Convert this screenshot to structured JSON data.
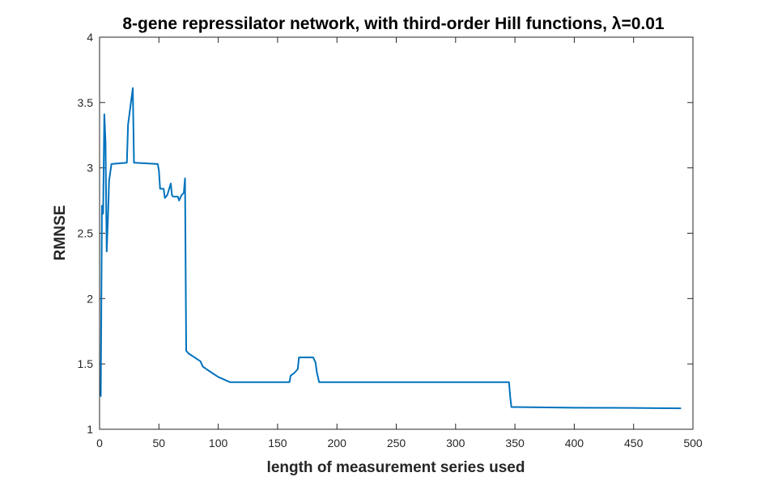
{
  "chart_data": {
    "type": "line",
    "title": "8-gene repressilator network, with third-order Hill functions, λ=0.01",
    "xlabel": "length of measurement series used",
    "ylabel": "RMNSE",
    "xlim": [
      0,
      500
    ],
    "ylim": [
      1,
      4
    ],
    "xticks": [
      0,
      50,
      100,
      150,
      200,
      250,
      300,
      350,
      400,
      450,
      500
    ],
    "yticks": [
      1,
      1.5,
      2,
      2.5,
      3,
      3.5,
      4
    ],
    "xtick_labels": [
      "0",
      "50",
      "100",
      "150",
      "200",
      "250",
      "300",
      "350",
      "400",
      "450",
      "500"
    ],
    "ytick_labels": [
      "1",
      "1.5",
      "2",
      "2.5",
      "3",
      "3.5",
      "4"
    ],
    "grid": false,
    "line_color": "#0072BD",
    "series": [
      {
        "x": [
          1,
          2,
          3,
          4,
          5,
          6,
          7,
          8,
          10,
          23,
          24,
          28,
          29,
          49,
          50,
          51,
          54,
          55,
          57,
          60,
          61,
          62,
          66,
          67,
          69,
          71,
          72,
          73,
          74,
          75,
          80,
          85,
          87,
          90,
          95,
          100,
          105,
          110,
          160,
          161,
          164,
          165,
          167,
          168,
          180,
          182,
          183,
          185,
          345,
          346,
          347,
          400,
          450,
          490
        ],
        "y": [
          1.25,
          2.71,
          2.65,
          3.41,
          3.2,
          2.36,
          2.6,
          2.9,
          3.03,
          3.04,
          3.33,
          3.61,
          3.04,
          3.03,
          2.98,
          2.84,
          2.84,
          2.77,
          2.79,
          2.88,
          2.79,
          2.78,
          2.78,
          2.75,
          2.79,
          2.81,
          2.92,
          1.6,
          1.59,
          1.58,
          1.55,
          1.52,
          1.48,
          1.46,
          1.43,
          1.4,
          1.38,
          1.36,
          1.36,
          1.41,
          1.43,
          1.44,
          1.46,
          1.55,
          1.55,
          1.51,
          1.44,
          1.36,
          1.36,
          1.25,
          1.17,
          1.165,
          1.163,
          1.16
        ]
      }
    ]
  }
}
